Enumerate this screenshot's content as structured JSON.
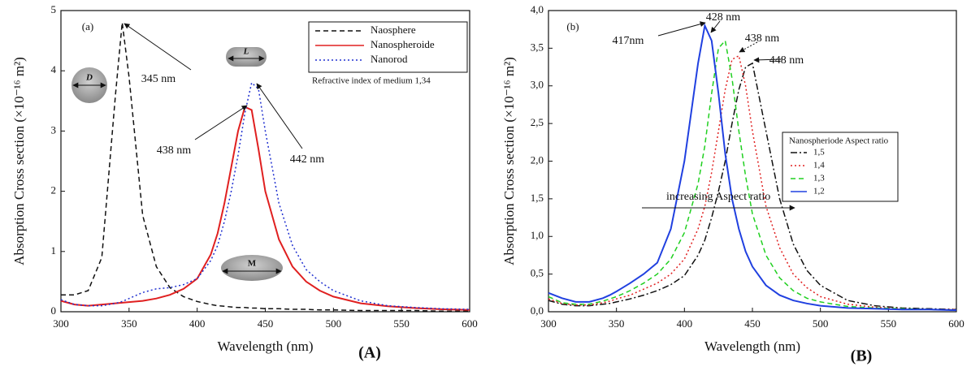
{
  "chart_data": [
    {
      "type": "line",
      "tag": "(a)",
      "panel_label": "(A)",
      "x_label": "Wavelength (nm)",
      "y_label": "Absorption Cross section (×10⁻¹⁶ m²)",
      "xlim": [
        300,
        600
      ],
      "xticks": [
        300,
        350,
        400,
        450,
        500,
        550,
        600
      ],
      "ylim": [
        0,
        5
      ],
      "yticks": [
        0,
        1,
        2,
        3,
        4,
        5
      ],
      "x": [
        300,
        310,
        320,
        330,
        340,
        345,
        350,
        360,
        370,
        380,
        390,
        400,
        410,
        415,
        420,
        425,
        430,
        435,
        440,
        445,
        450,
        460,
        470,
        480,
        490,
        500,
        520,
        540,
        560,
        580,
        600
      ],
      "series": [
        {
          "name": "Naosphere",
          "color": "#111111",
          "dash": "dashed",
          "values": [
            0.28,
            0.28,
            0.35,
            0.9,
            3.6,
            4.8,
            3.9,
            1.6,
            0.75,
            0.4,
            0.25,
            0.17,
            0.12,
            0.1,
            0.09,
            0.08,
            0.07,
            0.07,
            0.06,
            0.06,
            0.05,
            0.05,
            0.04,
            0.04,
            0.03,
            0.03,
            0.02,
            0.02,
            0.02,
            0.01,
            0.01
          ]
        },
        {
          "name": "Nanospheroide",
          "color": "#e02020",
          "dash": "solid",
          "values": [
            0.18,
            0.12,
            0.1,
            0.12,
            0.14,
            0.15,
            0.16,
            0.18,
            0.22,
            0.28,
            0.38,
            0.55,
            0.95,
            1.3,
            1.8,
            2.4,
            3.0,
            3.4,
            3.35,
            2.7,
            2.0,
            1.2,
            0.75,
            0.5,
            0.35,
            0.25,
            0.14,
            0.09,
            0.06,
            0.04,
            0.03
          ]
        },
        {
          "name": "Nanorod",
          "color": "#2030d0",
          "dash": "dotted",
          "values": [
            0.2,
            0.12,
            0.1,
            0.1,
            0.14,
            0.17,
            0.22,
            0.32,
            0.38,
            0.4,
            0.45,
            0.55,
            0.85,
            1.1,
            1.5,
            2.0,
            2.6,
            3.3,
            3.8,
            3.7,
            3.0,
            1.8,
            1.1,
            0.7,
            0.5,
            0.35,
            0.18,
            0.1,
            0.07,
            0.05,
            0.04
          ]
        }
      ],
      "note": "Refractive index of medium 1,34",
      "annotations": [
        "345 nm",
        "438 nm",
        "442 nm"
      ],
      "shape_labels": [
        "D",
        "L",
        "M"
      ]
    },
    {
      "type": "line",
      "tag": "(b)",
      "panel_label": "(B)",
      "x_label": "Wavelength (nm)",
      "y_label": "Absorption Cross section (×10⁻¹⁶ m²)",
      "xlim": [
        300,
        600
      ],
      "xticks": [
        300,
        350,
        400,
        450,
        500,
        550,
        600
      ],
      "ylim": [
        0,
        4
      ],
      "yticks": [
        {
          "value": 0,
          "label": "0,0"
        },
        {
          "value": 0.5,
          "label": "0,5"
        },
        {
          "value": 1,
          "label": "1,0"
        },
        {
          "value": 1.5,
          "label": "1,5"
        },
        {
          "value": 2,
          "label": "2,0"
        },
        {
          "value": 2.5,
          "label": "2,5"
        },
        {
          "value": 3,
          "label": "3,0"
        },
        {
          "value": 3.5,
          "label": "3,5"
        },
        {
          "value": 4,
          "label": "4,0"
        }
      ],
      "x": [
        300,
        310,
        320,
        330,
        340,
        345,
        350,
        360,
        370,
        380,
        390,
        400,
        410,
        415,
        420,
        425,
        430,
        435,
        440,
        445,
        450,
        460,
        470,
        480,
        490,
        500,
        520,
        540,
        560,
        580,
        600
      ],
      "legend_title": "Nanospheriode Aspect ratio",
      "series": [
        {
          "name": "1,5",
          "color": "#111111",
          "dash": "dashdot",
          "values": [
            0.15,
            0.1,
            0.08,
            0.08,
            0.1,
            0.11,
            0.13,
            0.17,
            0.22,
            0.28,
            0.36,
            0.48,
            0.75,
            0.95,
            1.25,
            1.6,
            2.0,
            2.5,
            2.95,
            3.25,
            3.3,
            2.4,
            1.5,
            0.9,
            0.55,
            0.35,
            0.15,
            0.08,
            0.05,
            0.04,
            0.03
          ]
        },
        {
          "name": "1,4",
          "color": "#e02020",
          "dash": "dotted",
          "values": [
            0.17,
            0.11,
            0.09,
            0.09,
            0.12,
            0.14,
            0.17,
            0.22,
            0.3,
            0.38,
            0.5,
            0.7,
            1.1,
            1.4,
            1.85,
            2.4,
            2.95,
            3.35,
            3.4,
            3.0,
            2.4,
            1.4,
            0.85,
            0.5,
            0.32,
            0.2,
            0.1,
            0.06,
            0.04,
            0.03,
            0.03
          ]
        },
        {
          "name": "1,3",
          "color": "#20d020",
          "dash": "dashed",
          "values": [
            0.2,
            0.12,
            0.1,
            0.1,
            0.14,
            0.17,
            0.2,
            0.28,
            0.38,
            0.5,
            0.7,
            1.05,
            1.7,
            2.2,
            2.9,
            3.5,
            3.6,
            3.1,
            2.4,
            1.8,
            1.3,
            0.75,
            0.45,
            0.28,
            0.18,
            0.13,
            0.07,
            0.05,
            0.04,
            0.03,
            0.02
          ]
        },
        {
          "name": "1,2",
          "color": "#2040e0",
          "dash": "solid",
          "values": [
            0.25,
            0.18,
            0.13,
            0.13,
            0.18,
            0.22,
            0.27,
            0.38,
            0.5,
            0.65,
            1.1,
            2.0,
            3.3,
            3.8,
            3.6,
            2.9,
            2.1,
            1.5,
            1.1,
            0.8,
            0.6,
            0.35,
            0.22,
            0.15,
            0.11,
            0.08,
            0.05,
            0.04,
            0.03,
            0.03,
            0.02
          ]
        }
      ],
      "annotations": [
        "417nm",
        "428 nm",
        "438 nm",
        "448 nm",
        "increasing Aspect ratio"
      ]
    }
  ]
}
